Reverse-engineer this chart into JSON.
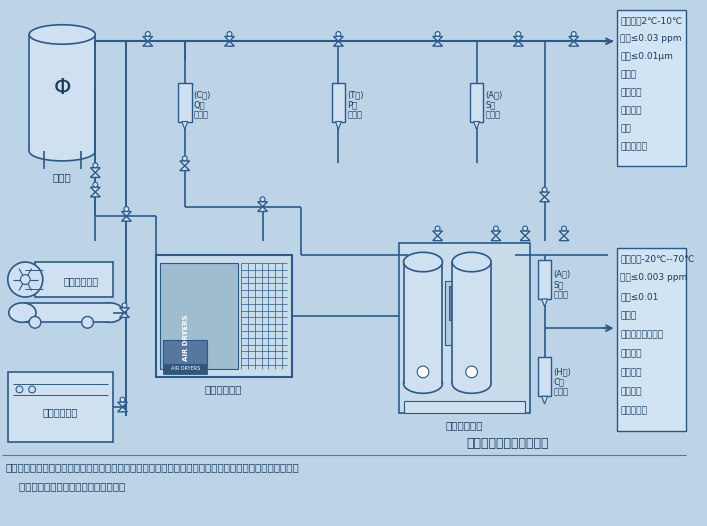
{
  "bg_color": "#bdd4e7",
  "line_color": "#2a5a8c",
  "dark_color": "#1a3a5c",
  "box_bg": "#cfe0f0",
  "title": "压缩空气净化系统流程图",
  "note1": "注：以上配置仅供参考，用户可根据实际情况作相应调整，在新建管路或配置不当时，滤芯寿命可能较短。",
  "note2": "    技术参数如有更改，本公司恕不通知。",
  "box1_lines": [
    "压力露点2℃-10℃",
    "含油≤0.03 ppm",
    "含尘≤0.01μm",
    "适用：",
    "气动工具",
    "气动机械",
    "喷漆",
    "气动输送等"
  ],
  "box2_lines": [
    "压力露点-20℃--70℃",
    "含油≤0.003 ppm",
    "含尘≤0.01",
    "适用：",
    "电子化工精密机械",
    "纺织行业",
    "制药行业",
    "高级喷漆",
    "生物工程等"
  ],
  "label_chuguan": "储气罐",
  "label_huosai": "活塞式空压机",
  "label_luogan": "螺杆式空压机",
  "label_lengdong": "冷冻式干燥机",
  "label_xifan": "吸附式干燥机",
  "label_cj_filter": "(C级)\nQ级\n过滤器",
  "label_t_filter": "(T级)\nP级\n过滤器",
  "label_a_filter1": "(A级)\nS级\n过滤器",
  "label_a_filter2": "(A级)\nS级\n过滤器",
  "label_h_filter": "(H级)\nC级\n过滤器",
  "air_dryers_text": "AIR DRYERS"
}
